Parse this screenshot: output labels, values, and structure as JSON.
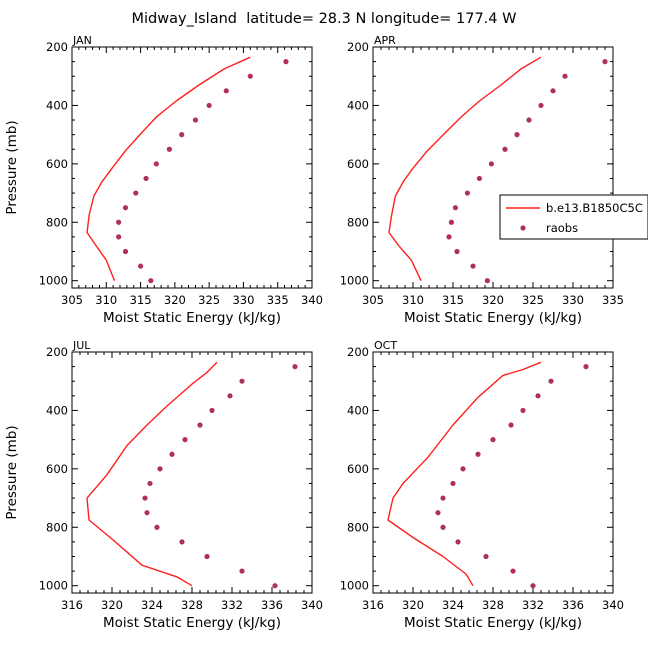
{
  "title": "Midway_Island  latitude= 28.3 N longitude= 177.4 W",
  "colors": {
    "model": "#ff1f1f",
    "obs": "#b0305a",
    "axis": "#000000"
  },
  "legend": {
    "model_label": "b.e13.B1850C5C",
    "obs_label": "raobs"
  },
  "chart_data": [
    {
      "type": "line",
      "panel": "JAN",
      "xlabel": "Moist Static Energy (kJ/kg)",
      "ylabel": "Pressure (mb)",
      "xlim": [
        305,
        340
      ],
      "xticks": [
        305,
        310,
        315,
        320,
        325,
        330,
        335,
        340
      ],
      "ylim": [
        200,
        1025
      ],
      "yticks": [
        200,
        400,
        600,
        800,
        1000
      ],
      "series": [
        {
          "name": "b.e13.B1850C5C",
          "kind": "line",
          "points": [
            [
              331.0,
              235
            ],
            [
              327.2,
              275
            ],
            [
              323.5,
              330
            ],
            [
              320.2,
              385
            ],
            [
              317.3,
              440
            ],
            [
              314.9,
              500
            ],
            [
              312.8,
              555
            ],
            [
              311.0,
              610
            ],
            [
              309.4,
              660
            ],
            [
              308.2,
              710
            ],
            [
              307.5,
              775
            ],
            [
              307.2,
              835
            ],
            [
              308.5,
              880
            ],
            [
              310.0,
              930
            ],
            [
              311.2,
              1000
            ]
          ]
        },
        {
          "name": "raobs",
          "kind": "scatter",
          "points": [
            [
              336.2,
              250
            ],
            [
              331.0,
              300
            ],
            [
              327.5,
              350
            ],
            [
              325.0,
              400
            ],
            [
              323.0,
              450
            ],
            [
              321.0,
              500
            ],
            [
              319.2,
              550
            ],
            [
              317.3,
              600
            ],
            [
              315.8,
              650
            ],
            [
              314.3,
              700
            ],
            [
              312.8,
              750
            ],
            [
              311.8,
              800
            ],
            [
              311.8,
              850
            ],
            [
              312.8,
              900
            ],
            [
              315.0,
              950
            ],
            [
              316.5,
              1000
            ]
          ]
        }
      ]
    },
    {
      "type": "line",
      "panel": "APR",
      "xlabel": "Moist Static Energy (kJ/kg)",
      "ylabel": "",
      "xlim": [
        305,
        335
      ],
      "xticks": [
        305,
        310,
        315,
        320,
        325,
        330,
        335
      ],
      "ylim": [
        200,
        1025
      ],
      "yticks": [
        200,
        400,
        600,
        800,
        1000
      ],
      "series": [
        {
          "name": "b.e13.B1850C5C",
          "kind": "line",
          "points": [
            [
              326.0,
              235
            ],
            [
              323.5,
              275
            ],
            [
              321.0,
              330
            ],
            [
              318.3,
              385
            ],
            [
              316.0,
              440
            ],
            [
              313.8,
              500
            ],
            [
              311.8,
              555
            ],
            [
              310.0,
              615
            ],
            [
              308.8,
              660
            ],
            [
              307.8,
              710
            ],
            [
              307.3,
              780
            ],
            [
              307.0,
              835
            ],
            [
              308.2,
              880
            ],
            [
              309.8,
              930
            ],
            [
              311.0,
              1000
            ]
          ]
        },
        {
          "name": "raobs",
          "kind": "scatter",
          "points": [
            [
              334.0,
              250
            ],
            [
              329.0,
              300
            ],
            [
              327.5,
              350
            ],
            [
              326.0,
              400
            ],
            [
              324.5,
              450
            ],
            [
              323.0,
              500
            ],
            [
              321.5,
              550
            ],
            [
              319.8,
              600
            ],
            [
              318.3,
              650
            ],
            [
              316.8,
              700
            ],
            [
              315.3,
              750
            ],
            [
              314.8,
              800
            ],
            [
              314.5,
              850
            ],
            [
              315.5,
              900
            ],
            [
              317.5,
              950
            ],
            [
              319.3,
              1000
            ]
          ]
        }
      ]
    },
    {
      "type": "line",
      "panel": "JUL",
      "xlabel": "Moist Static Energy (kJ/kg)",
      "ylabel": "Pressure (mb)",
      "xlim": [
        316,
        340
      ],
      "xticks": [
        316,
        320,
        324,
        328,
        332,
        336,
        340
      ],
      "ylim": [
        200,
        1025
      ],
      "yticks": [
        200,
        400,
        600,
        800,
        1000
      ],
      "series": [
        {
          "name": "b.e13.B1850C5C",
          "kind": "line",
          "points": [
            [
              330.5,
              235
            ],
            [
              329.5,
              270
            ],
            [
              328.0,
              310
            ],
            [
              325.5,
              385
            ],
            [
              323.5,
              450
            ],
            [
              321.5,
              520
            ],
            [
              319.5,
              620
            ],
            [
              317.5,
              700
            ],
            [
              317.7,
              775
            ],
            [
              320.0,
              840
            ],
            [
              323.0,
              930
            ],
            [
              326.5,
              970
            ],
            [
              328.0,
              1000
            ]
          ]
        },
        {
          "name": "raobs",
          "kind": "scatter",
          "points": [
            [
              338.3,
              250
            ],
            [
              333.0,
              300
            ],
            [
              331.8,
              350
            ],
            [
              330.0,
              400
            ],
            [
              328.8,
              450
            ],
            [
              327.3,
              500
            ],
            [
              326.0,
              550
            ],
            [
              324.8,
              600
            ],
            [
              323.8,
              650
            ],
            [
              323.3,
              700
            ],
            [
              323.5,
              750
            ],
            [
              324.5,
              800
            ],
            [
              327.0,
              850
            ],
            [
              329.5,
              900
            ],
            [
              333.0,
              950
            ],
            [
              336.3,
              1000
            ]
          ]
        }
      ]
    },
    {
      "type": "line",
      "panel": "OCT",
      "xlabel": "Moist Static Energy (kJ/kg)",
      "ylabel": "",
      "xlim": [
        316,
        340
      ],
      "xticks": [
        316,
        320,
        324,
        328,
        332,
        336,
        340
      ],
      "ylim": [
        200,
        1025
      ],
      "yticks": [
        200,
        400,
        600,
        800,
        1000
      ],
      "series": [
        {
          "name": "b.e13.B1850C5C",
          "kind": "line",
          "points": [
            [
              332.8,
              235
            ],
            [
              331.0,
              260
            ],
            [
              329.0,
              280
            ],
            [
              326.5,
              355
            ],
            [
              324.0,
              450
            ],
            [
              321.5,
              560
            ],
            [
              319.0,
              650
            ],
            [
              318.0,
              700
            ],
            [
              317.5,
              775
            ],
            [
              320.0,
              835
            ],
            [
              323.0,
              900
            ],
            [
              325.3,
              960
            ],
            [
              326.0,
              1000
            ]
          ]
        },
        {
          "name": "raobs",
          "kind": "scatter",
          "points": [
            [
              337.3,
              250
            ],
            [
              333.8,
              300
            ],
            [
              332.5,
              350
            ],
            [
              331.0,
              400
            ],
            [
              329.8,
              450
            ],
            [
              328.0,
              500
            ],
            [
              326.5,
              550
            ],
            [
              325.0,
              600
            ],
            [
              324.0,
              650
            ],
            [
              323.0,
              700
            ],
            [
              322.5,
              750
            ],
            [
              323.0,
              800
            ],
            [
              324.5,
              850
            ],
            [
              327.3,
              900
            ],
            [
              330.0,
              950
            ],
            [
              332.0,
              1000
            ]
          ]
        }
      ]
    }
  ]
}
